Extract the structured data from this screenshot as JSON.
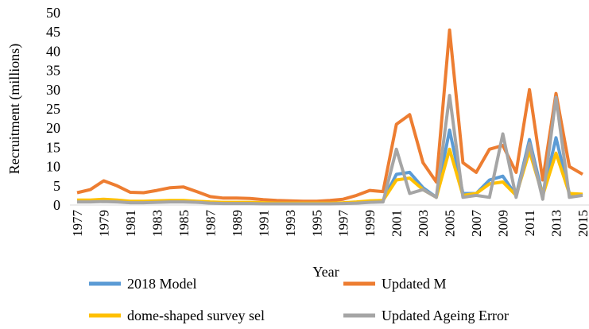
{
  "chart_data": {
    "type": "line",
    "x_label": "Year",
    "y_label": "Recruitment (millions)",
    "categories": [
      "1977",
      null,
      "1979",
      null,
      "1981",
      null,
      "1983",
      null,
      "1985",
      null,
      "1987",
      null,
      "1989",
      null,
      "1991",
      null,
      "1993",
      null,
      "1995",
      null,
      "1997",
      null,
      "1999",
      null,
      "2001",
      null,
      "2003",
      null,
      "2005",
      null,
      "2007",
      null,
      "2009",
      null,
      "2011",
      null,
      "2013",
      null,
      "2015"
    ],
    "series": [
      {
        "name": "2018 Model",
        "color": "#5b9bd5",
        "values": [
          1.0,
          1.1,
          1.2,
          1.1,
          0.9,
          0.9,
          1.0,
          1.1,
          1.1,
          0.9,
          0.7,
          0.6,
          0.6,
          0.6,
          0.5,
          0.4,
          0.4,
          0.4,
          0.4,
          0.4,
          0.5,
          0.7,
          1.0,
          1.2,
          8.0,
          8.5,
          4.5,
          2.0,
          19.5,
          3.0,
          3.0,
          6.5,
          7.5,
          2.5,
          17.0,
          2.5,
          17.5,
          3.0,
          2.5
        ]
      },
      {
        "name": "Updated M",
        "color": "#ed7d31",
        "values": [
          3.2,
          4.0,
          6.3,
          5.0,
          3.3,
          3.2,
          3.8,
          4.5,
          4.7,
          3.5,
          2.2,
          1.8,
          1.8,
          1.7,
          1.4,
          1.2,
          1.1,
          1.0,
          1.0,
          1.2,
          1.5,
          2.5,
          3.8,
          3.5,
          21.0,
          23.5,
          11.0,
          6.0,
          45.5,
          11.0,
          8.5,
          14.5,
          15.5,
          8.5,
          30.0,
          6.5,
          29.0,
          10.0,
          8.0
        ]
      },
      {
        "name": "dome-shaped survey sel",
        "color": "#ffc000",
        "values": [
          1.3,
          1.3,
          1.5,
          1.3,
          1.0,
          1.0,
          1.1,
          1.2,
          1.2,
          1.0,
          0.8,
          0.7,
          0.7,
          0.7,
          0.6,
          0.5,
          0.5,
          0.5,
          0.5,
          0.5,
          0.6,
          0.8,
          1.1,
          1.2,
          6.5,
          7.0,
          4.0,
          2.0,
          14.5,
          2.5,
          3.0,
          5.5,
          6.0,
          2.5,
          14.0,
          2.5,
          13.5,
          3.0,
          2.8
        ]
      },
      {
        "name": "Updated Ageing Error",
        "color": "#a5a5a5",
        "values": [
          0.8,
          0.8,
          0.9,
          0.8,
          0.6,
          0.6,
          0.7,
          0.8,
          0.8,
          0.7,
          0.5,
          0.4,
          0.4,
          0.4,
          0.3,
          0.3,
          0.3,
          0.3,
          0.3,
          0.3,
          0.4,
          0.5,
          0.7,
          0.8,
          14.5,
          3.0,
          4.0,
          2.0,
          28.5,
          2.0,
          2.5,
          2.0,
          18.5,
          2.0,
          16.0,
          1.5,
          28.0,
          2.0,
          2.5
        ]
      }
    ],
    "ylim": [
      0,
      50
    ],
    "yticks": [
      0,
      5,
      10,
      15,
      20,
      25,
      30,
      35,
      40,
      45,
      50
    ]
  }
}
